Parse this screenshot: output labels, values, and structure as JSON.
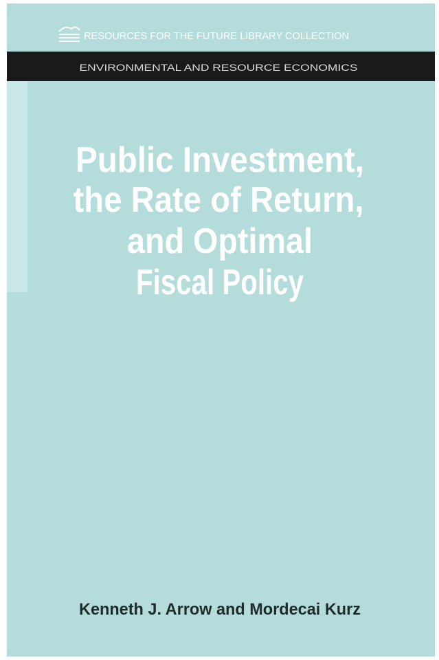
{
  "series_label": "RESOURCES FOR THE FUTURE LIBRARY COLLECTION",
  "band_label": "ENVIRONMENTAL AND RESOURCE ECONOMICS",
  "title_lines": [
    "Public Investment,",
    "the Rate of Return,",
    "and Optimal",
    "Fiscal Policy"
  ],
  "author": "Kenneth J. Arrow and Mordecai Kurz"
}
